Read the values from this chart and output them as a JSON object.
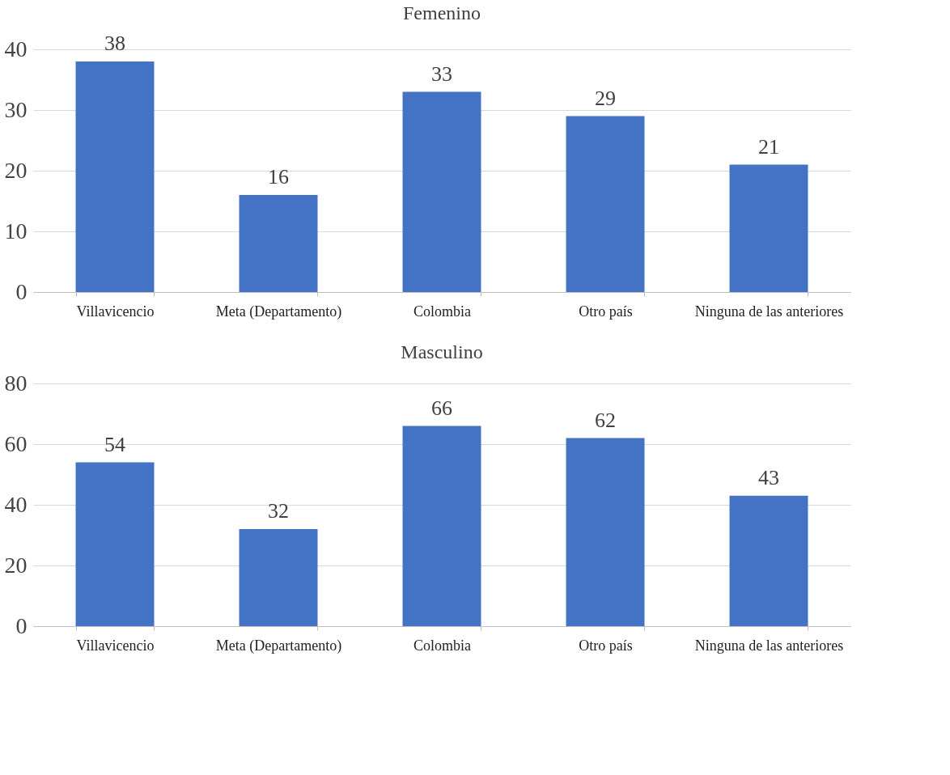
{
  "chart_data": [
    {
      "type": "bar",
      "title": "Femenino",
      "categories": [
        "Villavicencio",
        "Meta (Departamento)",
        "Colombia",
        "Otro país",
        "Ninguna de las anteriores"
      ],
      "values": [
        38,
        16,
        33,
        29,
        21
      ],
      "color": "#4472c4",
      "ylim": [
        0,
        40
      ],
      "yticks": [
        0,
        10,
        20,
        30,
        40
      ],
      "grid": "y",
      "data_labels": true
    },
    {
      "type": "bar",
      "title": "Masculino",
      "categories": [
        "Villavicencio",
        "Meta (Departamento)",
        "Colombia",
        "Otro país",
        "Ninguna de las anteriores"
      ],
      "values": [
        54,
        32,
        66,
        62,
        43
      ],
      "color": "#4472c4",
      "ylim": [
        0,
        80
      ],
      "yticks": [
        0,
        20,
        40,
        60,
        80
      ],
      "grid": "y",
      "data_labels": true
    }
  ]
}
